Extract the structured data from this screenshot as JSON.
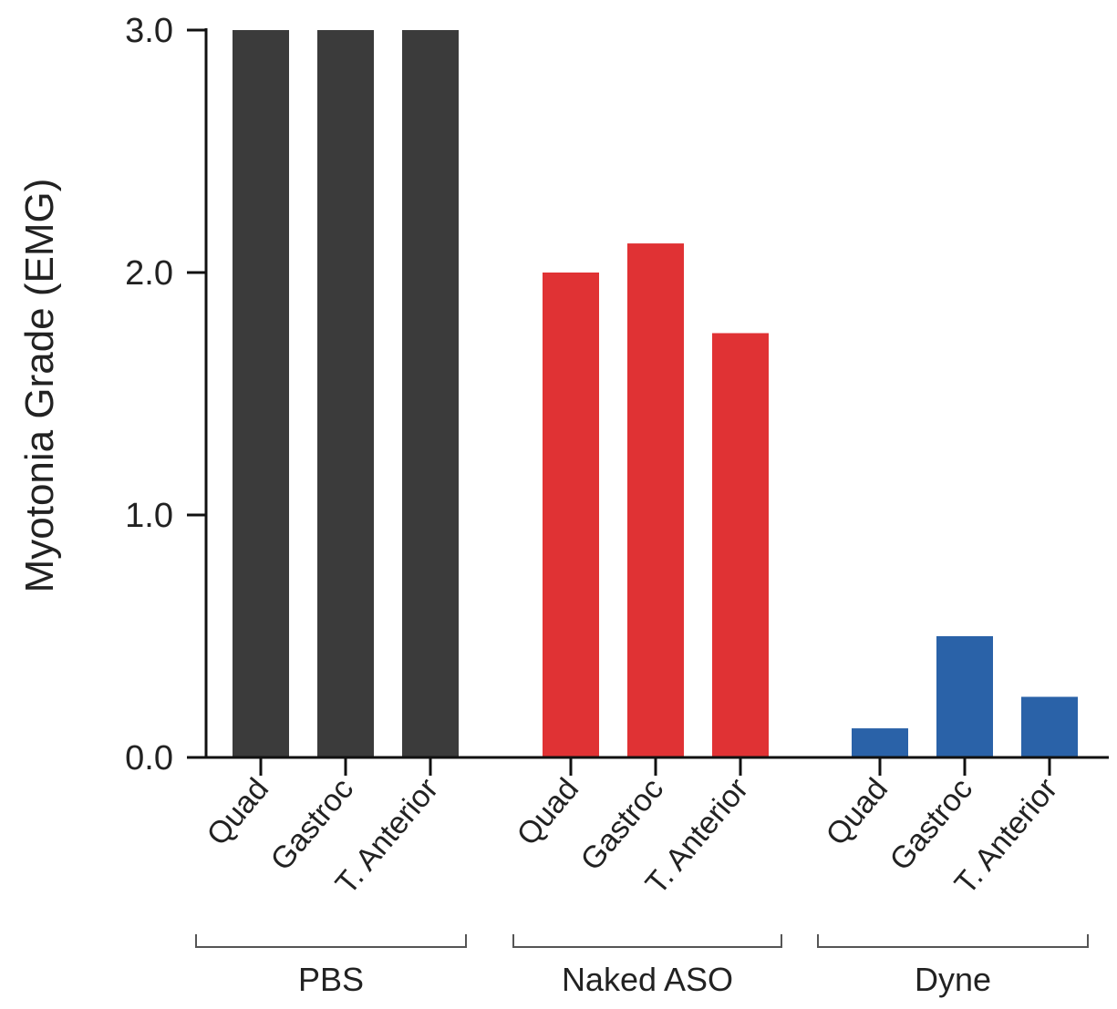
{
  "chart_data": {
    "type": "bar",
    "title": "",
    "xlabel": "",
    "ylabel": "Myotonia Grade (EMG)",
    "ylim": [
      0,
      3
    ],
    "yticks": [
      "0.0",
      "1.0",
      "2.0",
      "3.0"
    ],
    "grid": false,
    "groups": [
      {
        "name": "PBS",
        "color": "#3b3b3b",
        "categories": [
          "Quad",
          "Gastroc",
          "T. Anterior"
        ],
        "values": [
          3.0,
          3.0,
          3.0
        ]
      },
      {
        "name": "Naked ASO",
        "color": "#e03234",
        "categories": [
          "Quad",
          "Gastroc",
          "T. Anterior"
        ],
        "values": [
          2.0,
          2.12,
          1.75
        ]
      },
      {
        "name": "Dyne",
        "color": "#2a62a8",
        "categories": [
          "Quad",
          "Gastroc",
          "T. Anterior"
        ],
        "values": [
          0.12,
          0.5,
          0.25
        ]
      }
    ]
  }
}
